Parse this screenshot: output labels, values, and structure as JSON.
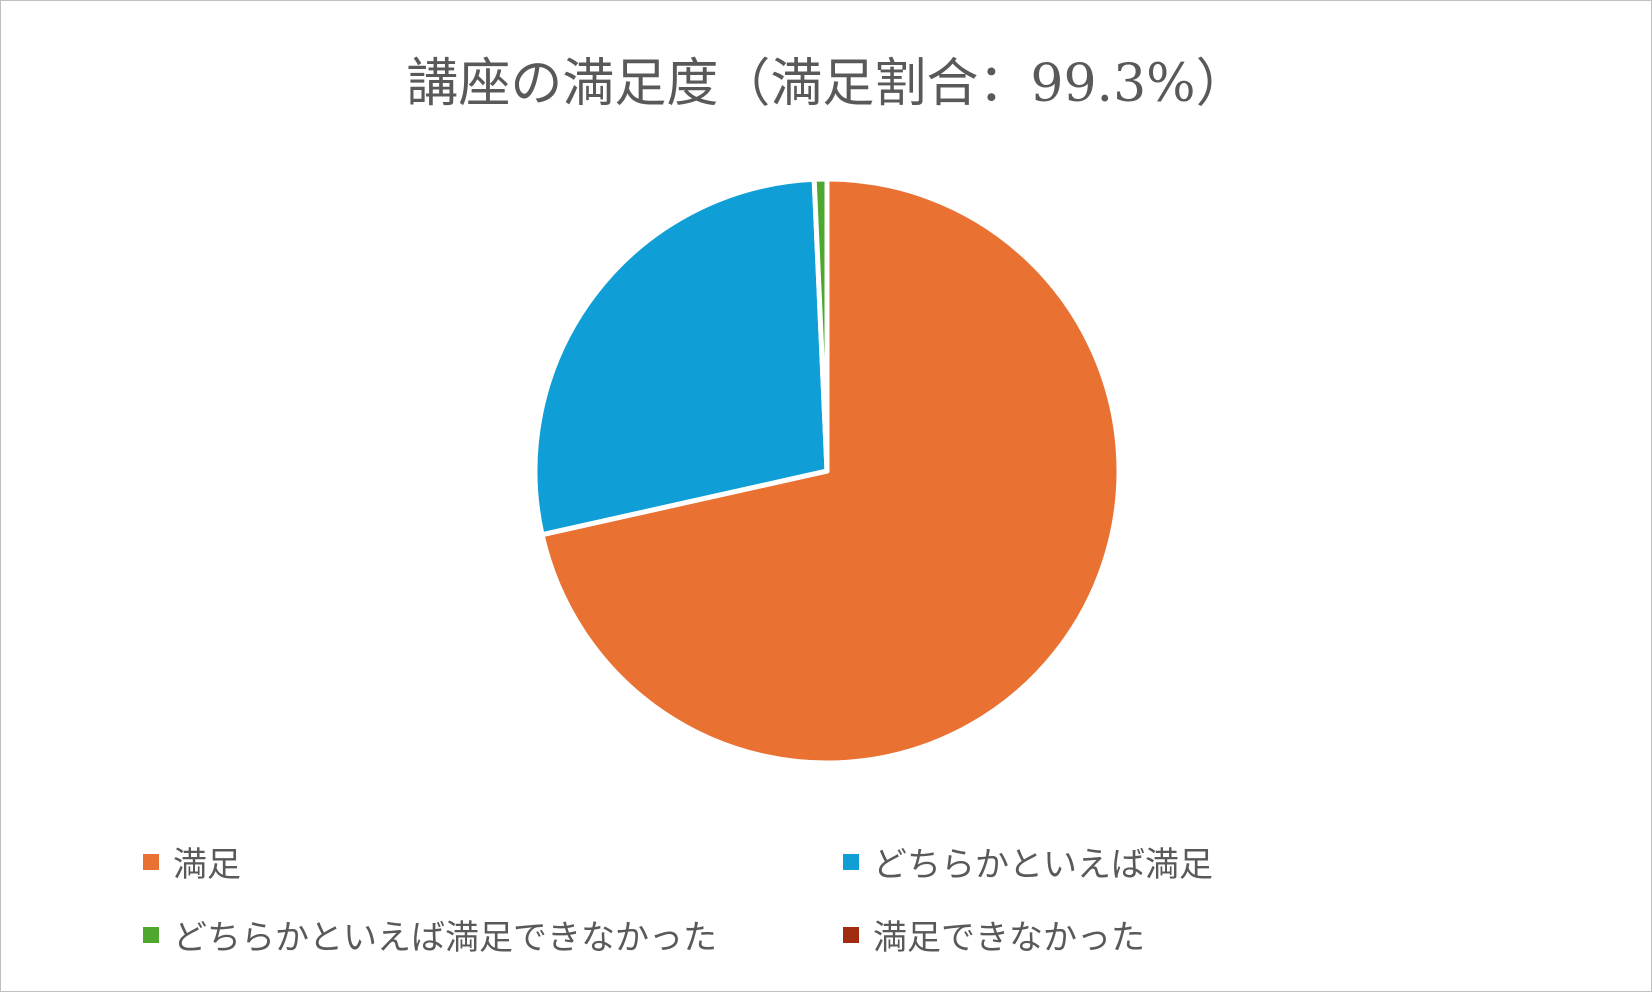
{
  "chart_data": {
    "type": "pie",
    "title": "講座の満足度（満足割合：99.3%）",
    "categories": [
      "満足",
      "どちらかといえば満足",
      "どちらかといえば満足できなかった",
      "満足できなかった"
    ],
    "values": [
      71.5,
      27.8,
      0.7,
      0.0
    ],
    "colors": [
      "#E97132",
      "#0F9ED5",
      "#4EA72E",
      "#A02B0F"
    ],
    "legend_position": "bottom"
  }
}
